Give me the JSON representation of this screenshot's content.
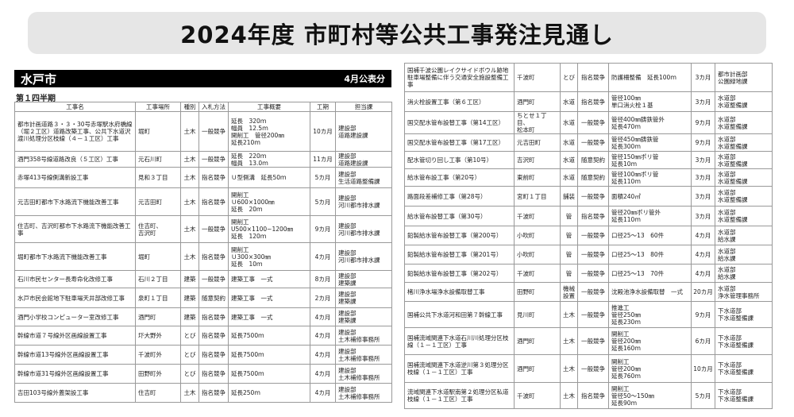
{
  "title": "2024年度 市町村等公共工事発注見通し",
  "city": "水戸市",
  "published": "4月公表分",
  "quarter": "第１四半期",
  "headers": [
    "工事名",
    "工事場所",
    "種別",
    "入札方法",
    "工事概要",
    "工期",
    "担当課"
  ],
  "left_rows": [
    [
      "都市計画道路３・３・30号赤塚駅水府橋線（堀２工区）道路改築工事、公共下水道沢渡川処理分区枝線（４－１工区）工事",
      "堀町",
      "土木",
      "一般競争",
      "延長　320ｍ\n幅員　12.5ｍ\n開削工　管径200㎜\n延長210ｍ",
      "10カ月",
      "建設部\n道路建設課"
    ],
    [
      "酒門358号線道路改良（５工区）工事",
      "元石川町",
      "土木",
      "一般競争",
      "延長　220ｍ\n幅員　13.0ｍ",
      "11カ月",
      "建設部\n道路建設課"
    ],
    [
      "赤塚413号線側溝新設工事",
      "見和３丁目",
      "土木",
      "指名競争",
      "Ｕ型側溝　延長50ｍ",
      "5カ月",
      "建設部\n生活道路整備課"
    ],
    [
      "元吉田町都市下水路流下機能改善工事",
      "元吉田町",
      "土木",
      "指名競争",
      "開削工\nＵ600×1000㎜\n延長　20ｍ",
      "5カ月",
      "建設部\n河川都市排水課"
    ],
    [
      "住吉町、吉沢町都市下水路流下機能改善工事",
      "住吉町、\n吉沢町",
      "土木",
      "一般競争",
      "開削工\nU500×1100~1200㎜\n延長　120ｍ",
      "9カ月",
      "建設部\n河川都市排水課"
    ],
    [
      "堀町都市下水路流下機能改善工事",
      "堀町",
      "土木",
      "指名競争",
      "開削工\nＵ300×300㎜\n延長　10ｍ",
      "4カ月",
      "建設部\n河川都市排水課"
    ],
    [
      "石川市民センター長寿命化改修工事",
      "石川２丁目",
      "建築",
      "一般競争",
      "建築工事　一式",
      "8カ月",
      "建設部\n建築課"
    ],
    [
      "水戸市民会館地下駐車場天井部改修工事",
      "泉町１丁目",
      "建築",
      "随意契約",
      "建築工事　一式",
      "2カ月",
      "建設部\n建築課"
    ],
    [
      "酒門小学校コンピューター室改修工事",
      "酒門町",
      "建築",
      "指名競争",
      "建築工事　一式",
      "4カ月",
      "建設部\n建築課"
    ],
    [
      "幹線市道７号線外区画線設置工事",
      "圷大野外",
      "とび",
      "指名競争",
      "延長7500ｍ",
      "4カ月",
      "建設部\n土木補修事務所"
    ],
    [
      "幹線市道13号線外区画線設置工事",
      "千波町外",
      "とび",
      "指名競争",
      "延長7500ｍ",
      "4カ月",
      "建設部\n土木補修事務所"
    ],
    [
      "幹線市道31号線外区画線設置工事",
      "田野町外",
      "とび",
      "指名競争",
      "延長7500ｍ",
      "4カ月",
      "建設部\n土木補修事務所"
    ],
    [
      "吉田103号線外蓋架設工事",
      "住吉町",
      "土木",
      "指名競争",
      "延長250ｍ",
      "4カ月",
      "建設部\n土木補修事務所"
    ]
  ],
  "right_rows": [
    [
      "国補千波公園レイクサイドボウル跡地駐車場整備に伴う交通安全施設整備工事",
      "千波町",
      "とび",
      "指名競争",
      "防護柵整備　延長100ｍ",
      "3カ月",
      "都市計画部\n公園緑地課"
    ],
    [
      "消火栓設置工事（第６工区）",
      "酒門町",
      "水道",
      "指名競争",
      "管径100㎜\n単口消火栓１基",
      "3カ月",
      "水道部\n水道整備課"
    ],
    [
      "国交配水管布設替工事（第14工区）",
      "ちとせ１丁目、\n松本町",
      "水道",
      "一般競争",
      "管径400㎜鋳鉄管外\n延長470ｍ",
      "9カ月",
      "水道部\n水道整備課"
    ],
    [
      "国交配水管布設替工事（第17工区）",
      "元吉田町",
      "水道",
      "一般競争",
      "管径450㎜鋳鉄管\n延長300ｍ",
      "9カ月",
      "水道部\n水道整備課"
    ],
    [
      "配水管切り回し工事（第10号）",
      "吉沢町",
      "水道",
      "随意契約",
      "管径150㎜ポリ管\n延長10ｍ",
      "3カ月",
      "水道部\n水道整備課"
    ],
    [
      "給水管布設工事（第20号）",
      "東前町",
      "水道",
      "随意契約",
      "管径100㎜ポリ管\n延長110ｍ",
      "3カ月",
      "水道部\n水道整備課"
    ],
    [
      "路面段差補修工事（第28号）",
      "宮町１丁目",
      "舗装",
      "一般競争",
      "面積240㎡",
      "3カ月",
      "水道部\n水道整備課"
    ],
    [
      "給水管布設替工事（第30号）",
      "千波町",
      "管",
      "指名競争",
      "管径20㎜ポリ管外\n延長110ｍ",
      "3カ月",
      "水道部\n水道整備課"
    ],
    [
      "鉛製給水管布設替工事（第200号）",
      "小吹町",
      "管",
      "一般競争",
      "口径25～13　60件",
      "4カ月",
      "水道部\n給水課"
    ],
    [
      "鉛製給水管布設替工事（第201号）",
      "小吹町",
      "管",
      "一般競争",
      "口径25～13　80件",
      "4カ月",
      "水道部\n給水課"
    ],
    [
      "鉛製給水管布設替工事（第202号）",
      "千波町",
      "管",
      "一般競争",
      "口径25～13　70件",
      "4カ月",
      "水道部\n給水課"
    ],
    [
      "楮川浄水場浄水設備取替工事",
      "田野町",
      "機械\n設置",
      "一般競争",
      "沈殿池浄水設備取替　一式",
      "20カ月",
      "水道部\n浄水管理事務所"
    ],
    [
      "国補公共下水道河和田第７幹線工事",
      "見川町",
      "土木",
      "一般競争",
      "推進工\n管径250㎜\n延長230ｍ",
      "9カ月",
      "下水道部\n下水道整備課"
    ],
    [
      "国補流域関連下水道石川川処理分区枝線（１－１工区）工事",
      "酒門町",
      "土木",
      "一般競争",
      "開削工\n管径200㎜\n延長160ｍ",
      "6カ月",
      "下水道部\n下水道整備課"
    ],
    [
      "国補流域関連下水道逆川第３処理分区枝線（１－１工区）工事",
      "酒門町",
      "土木",
      "一般競争",
      "開削工\n管径200㎜\n延長760ｍ",
      "10カ月",
      "下水道部\n下水道整備課"
    ],
    [
      "流域関連下水道駅南第２処理分区私道枝線（１－１工区）工事",
      "千波町",
      "土木",
      "指名競争",
      "開削工\n管径50～150㎜\n延長90ｍ",
      "5カ月",
      "下水道部\n下水道整備課"
    ]
  ]
}
